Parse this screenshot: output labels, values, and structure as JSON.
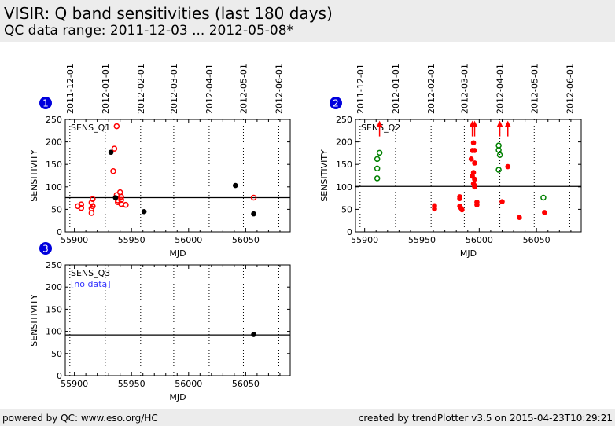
{
  "header": {
    "title": "VISIR: Q band sensitivities (last 180 days)",
    "subtitle": "QC data range: 2011-12-03 ... 2012-05-08*"
  },
  "footer": {
    "left": "powered by QC: www.eso.org/HC",
    "right": "created by trendPlotter v3.5 on 2015-04-23T10:29:21"
  },
  "colors": {
    "badge": "#0000dd",
    "red": "#ff0000",
    "green": "#008000",
    "black": "#000000",
    "nodata": "#3333ff"
  },
  "chart_data": [
    {
      "type": "scatter",
      "badge": "1",
      "label": "SENS_Q1",
      "xlabel": "MJD",
      "ylabel": "SENSITIVITY",
      "xlim": [
        55892,
        56089
      ],
      "ylim": [
        0,
        250
      ],
      "xticks": [
        55900,
        55950,
        56000,
        56050
      ],
      "yticks": [
        0,
        50,
        100,
        150,
        200,
        250
      ],
      "date_ticks": [
        {
          "label": "2011-12-01",
          "mjd": 55896
        },
        {
          "label": "2012-01-01",
          "mjd": 55927
        },
        {
          "label": "2012-02-01",
          "mjd": 55958
        },
        {
          "label": "2012-03-01",
          "mjd": 55987
        },
        {
          "label": "2012-04-01",
          "mjd": 56018
        },
        {
          "label": "2012-05-01",
          "mjd": 56048
        },
        {
          "label": "2012-06-01",
          "mjd": 56079
        }
      ],
      "show_date_labels": true,
      "reference_line": 76,
      "note": "",
      "series": [
        {
          "name": "red-open",
          "style": "open",
          "color": "#ff0000",
          "points": [
            [
              55903,
              57
            ],
            [
              55906,
              61
            ],
            [
              55906,
              53
            ],
            [
              55916,
              73
            ],
            [
              55915,
              65
            ],
            [
              55916,
              57
            ],
            [
              55915,
              52
            ],
            [
              55915,
              42
            ],
            [
              55937,
              235
            ],
            [
              55935,
              185
            ],
            [
              55934,
              135
            ],
            [
              55937,
              82
            ],
            [
              55940,
              88
            ],
            [
              55941,
              78
            ],
            [
              55938,
              70
            ],
            [
              55938,
              66
            ],
            [
              55941,
              62
            ],
            [
              55941,
              71
            ],
            [
              55945,
              60
            ],
            [
              56057,
              76
            ]
          ]
        },
        {
          "name": "black-filled",
          "style": "filled",
          "color": "#000000",
          "points": [
            [
              55932,
              177
            ],
            [
              55936,
              76
            ],
            [
              55961,
              45
            ],
            [
              56041,
              103
            ],
            [
              56057,
              40
            ]
          ]
        }
      ]
    },
    {
      "type": "scatter",
      "badge": "2",
      "label": "SENS_Q2",
      "xlabel": "MJD",
      "ylabel": "SENSITIVITY",
      "xlim": [
        55892,
        56089
      ],
      "ylim": [
        0,
        250
      ],
      "xticks": [
        55900,
        55950,
        56000,
        56050
      ],
      "yticks": [
        0,
        50,
        100,
        150,
        200,
        250
      ],
      "date_ticks": [
        {
          "label": "2011-12-01",
          "mjd": 55896
        },
        {
          "label": "2012-01-01",
          "mjd": 55927
        },
        {
          "label": "2012-02-01",
          "mjd": 55958
        },
        {
          "label": "2012-03-01",
          "mjd": 55987
        },
        {
          "label": "2012-04-01",
          "mjd": 56018
        },
        {
          "label": "2012-05-01",
          "mjd": 56048
        },
        {
          "label": "2012-06-01",
          "mjd": 56079
        }
      ],
      "show_date_labels": true,
      "reference_line": 101,
      "note": "",
      "series": [
        {
          "name": "green-open",
          "style": "open",
          "color": "#008000",
          "points": [
            [
              55911,
              162
            ],
            [
              55911,
              141
            ],
            [
              55911,
              119
            ],
            [
              55913,
              176
            ],
            [
              56017,
              192
            ],
            [
              56017,
              182
            ],
            [
              56018,
              171
            ],
            [
              56017,
              138
            ],
            [
              56056,
              76
            ]
          ]
        },
        {
          "name": "red-filled",
          "style": "filled",
          "color": "#ff0000",
          "points": [
            [
              55961,
              58
            ],
            [
              55961,
              51
            ],
            [
              55983,
              78
            ],
            [
              55983,
              74
            ],
            [
              55983,
              57
            ],
            [
              55984,
              53
            ],
            [
              55985,
              49
            ],
            [
              55993,
              162
            ],
            [
              55994,
              181
            ],
            [
              55996,
              181
            ],
            [
              55995,
              198
            ],
            [
              55996,
              153
            ],
            [
              55995,
              132
            ],
            [
              55994,
              124
            ],
            [
              55996,
              117
            ],
            [
              55995,
              107
            ],
            [
              55996,
              103
            ],
            [
              55996,
              100
            ],
            [
              55998,
              66
            ],
            [
              55998,
              60
            ],
            [
              56020,
              67
            ],
            [
              56025,
              145
            ],
            [
              56035,
              32
            ],
            [
              56057,
              43
            ]
          ]
        },
        {
          "name": "red-outlier-arrows",
          "style": "arrow",
          "color": "#ff0000",
          "points": [
            [
              55913,
              235
            ],
            [
              55994,
              235
            ],
            [
              55996,
              235
            ],
            [
              56018,
              235
            ],
            [
              56025,
              235
            ]
          ]
        }
      ]
    },
    {
      "type": "scatter",
      "badge": "3",
      "label": "SENS_Q3",
      "xlabel": "MJD",
      "ylabel": "SENSITIVITY",
      "xlim": [
        55892,
        56089
      ],
      "ylim": [
        0,
        250
      ],
      "xticks": [
        55900,
        55950,
        56000,
        56050
      ],
      "yticks": [
        0,
        50,
        100,
        150,
        200,
        250
      ],
      "date_ticks": [
        {
          "label": "2011-12-01",
          "mjd": 55896
        },
        {
          "label": "2012-01-01",
          "mjd": 55927
        },
        {
          "label": "2012-02-01",
          "mjd": 55958
        },
        {
          "label": "2012-03-01",
          "mjd": 55987
        },
        {
          "label": "2012-04-01",
          "mjd": 56018
        },
        {
          "label": "2012-05-01",
          "mjd": 56048
        },
        {
          "label": "2012-06-01",
          "mjd": 56079
        }
      ],
      "show_date_labels": false,
      "reference_line": 92,
      "note": "[no data]",
      "series": [
        {
          "name": "black-filled",
          "style": "filled",
          "color": "#000000",
          "points": [
            [
              56057,
              93
            ]
          ]
        }
      ]
    }
  ]
}
